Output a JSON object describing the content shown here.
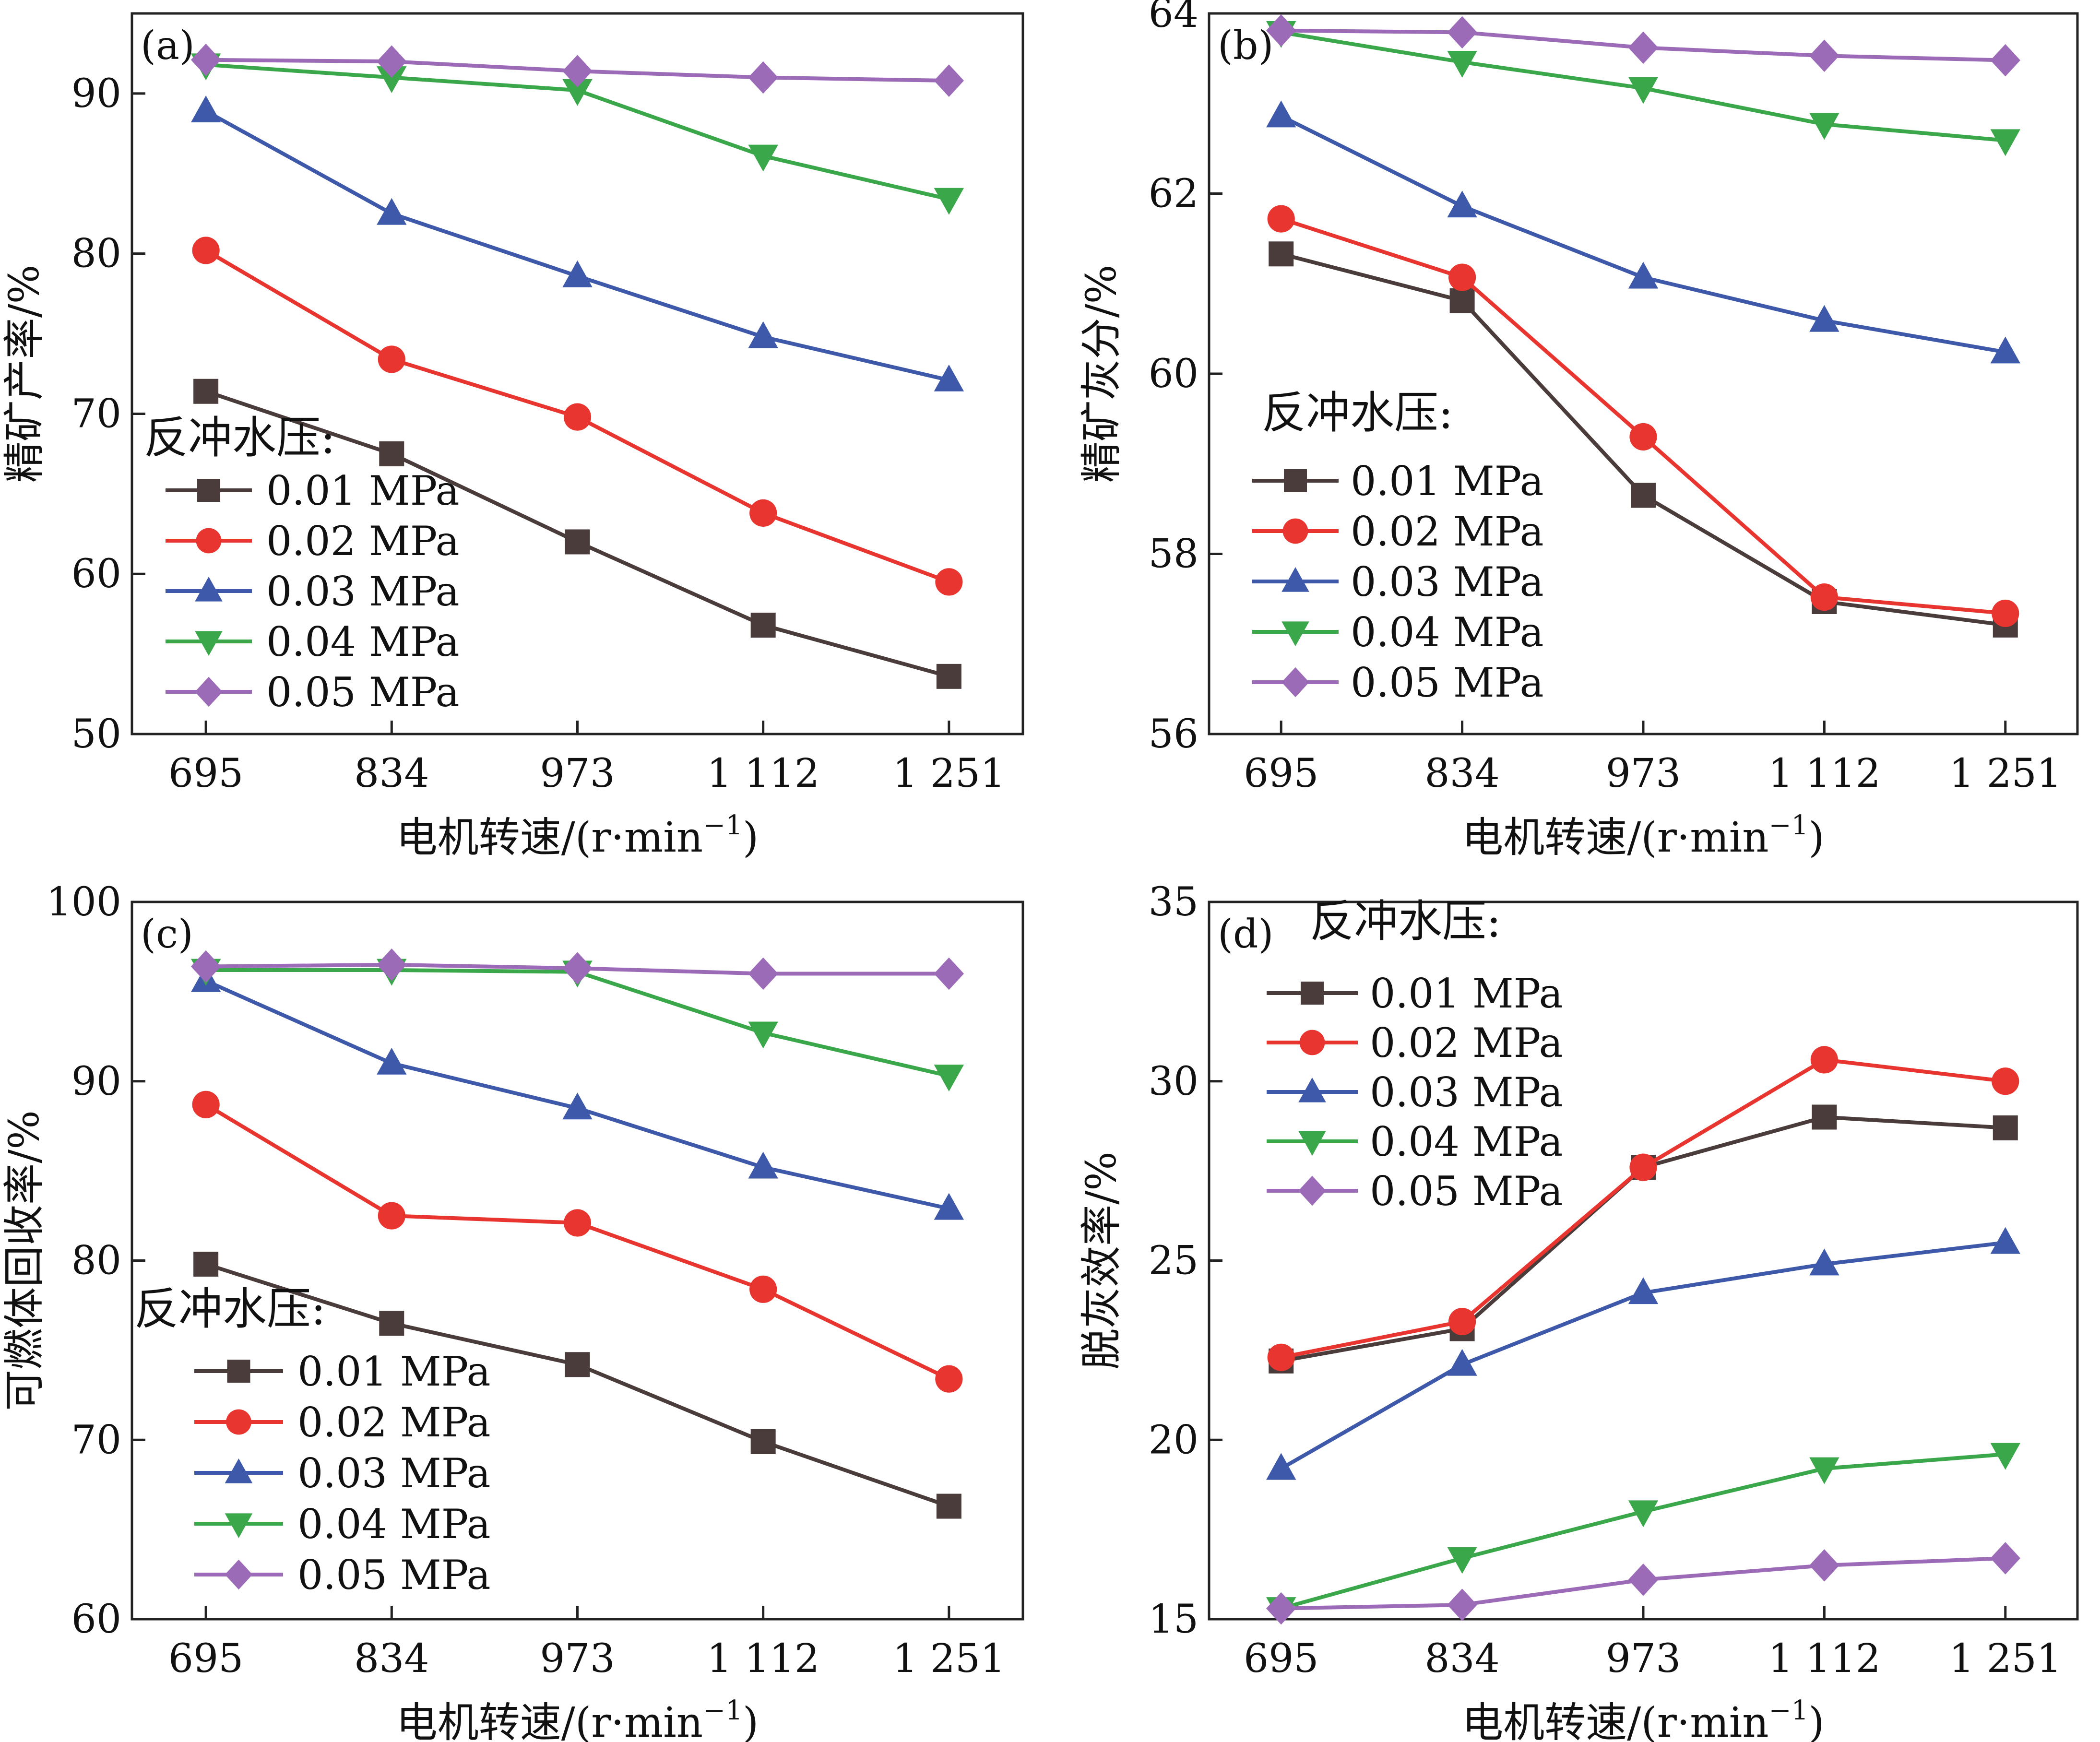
{
  "legend_title": "反冲水压:",
  "colors": {
    "0.01 MPa": "#4a3c3a",
    "0.02 MPa": "#e8352f",
    "0.03 MPa": "#3e59aa",
    "0.04 MPa": "#3aa84a",
    "0.05 MPa": "#9c6bb8"
  },
  "markers": {
    "0.01 MPa": "square",
    "0.02 MPa": "circle",
    "0.03 MPa": "triangle-up",
    "0.04 MPa": "triangle-down",
    "0.05 MPa": "diamond"
  },
  "chart_data": [
    {
      "panel": "(a)",
      "type": "line",
      "xlabel": "电机转速/(r·min",
      "xlabel_sup": "−1",
      "xlabel_close": ")",
      "ylabel": "精矿产率/%",
      "categories": [
        "695",
        "834",
        "973",
        "1 112",
        "1 251"
      ],
      "ylim": [
        50,
        95
      ],
      "yticks": [
        50,
        60,
        70,
        80,
        90
      ],
      "legend_title": "反冲水压:",
      "series": [
        {
          "name": "0.01 MPa",
          "values": [
            71.4,
            67.5,
            62.0,
            56.8,
            53.6
          ]
        },
        {
          "name": "0.02 MPa",
          "values": [
            80.2,
            73.4,
            69.8,
            63.8,
            59.5
          ]
        },
        {
          "name": "0.03 MPa",
          "values": [
            88.9,
            82.5,
            78.6,
            74.8,
            72.1
          ]
        },
        {
          "name": "0.04 MPa",
          "values": [
            91.8,
            91.0,
            90.2,
            86.1,
            83.4
          ]
        },
        {
          "name": "0.05 MPa",
          "values": [
            92.1,
            92.0,
            91.4,
            91.0,
            90.8
          ]
        }
      ]
    },
    {
      "panel": "(b)",
      "type": "line",
      "xlabel": "电机转速/(r·min",
      "xlabel_sup": "−1",
      "xlabel_close": ")",
      "ylabel": "精矿灰分/%",
      "categories": [
        "695",
        "834",
        "973",
        "1 112",
        "1 251"
      ],
      "ylim": [
        56,
        64
      ],
      "yticks": [
        56,
        58,
        60,
        62,
        64
      ],
      "legend_title": "反冲水压:",
      "series": [
        {
          "name": "0.01 MPa",
          "values": [
            61.33,
            60.81,
            58.65,
            57.47,
            57.21
          ]
        },
        {
          "name": "0.02 MPa",
          "values": [
            61.72,
            61.07,
            59.3,
            57.52,
            57.34
          ]
        },
        {
          "name": "0.03 MPa",
          "values": [
            62.86,
            61.86,
            61.07,
            60.59,
            60.24
          ]
        },
        {
          "name": "0.04 MPa",
          "values": [
            63.79,
            63.46,
            63.17,
            62.77,
            62.59
          ]
        },
        {
          "name": "0.05 MPa",
          "values": [
            63.81,
            63.79,
            63.62,
            63.53,
            63.48
          ]
        }
      ]
    },
    {
      "panel": "(c)",
      "type": "line",
      "xlabel": "电机转速/(r·min",
      "xlabel_sup": "−1",
      "xlabel_close": ")",
      "ylabel": "可燃体回收率/%",
      "categories": [
        "695",
        "834",
        "973",
        "1 112",
        "1 251"
      ],
      "ylim": [
        60,
        100
      ],
      "yticks": [
        60,
        70,
        80,
        90,
        100
      ],
      "legend_title": "反冲水压:",
      "series": [
        {
          "name": "0.01 MPa",
          "values": [
            79.8,
            76.5,
            74.2,
            69.9,
            66.3
          ]
        },
        {
          "name": "0.02 MPa",
          "values": [
            88.7,
            82.5,
            82.1,
            78.4,
            73.4
          ]
        },
        {
          "name": "0.03 MPa",
          "values": [
            95.6,
            91.0,
            88.5,
            85.2,
            82.9
          ]
        },
        {
          "name": "0.04 MPa",
          "values": [
            96.2,
            96.2,
            96.1,
            92.7,
            90.3
          ]
        },
        {
          "name": "0.05 MPa",
          "values": [
            96.4,
            96.5,
            96.3,
            96.0,
            96.0
          ]
        }
      ]
    },
    {
      "panel": "(d)",
      "type": "line",
      "xlabel": "电机转速/(r·min",
      "xlabel_sup": "−1",
      "xlabel_close": ")",
      "ylabel": "脱灰效率/%",
      "categories": [
        "695",
        "834",
        "973",
        "1 112",
        "1 251"
      ],
      "ylim": [
        15,
        35
      ],
      "yticks": [
        15,
        20,
        25,
        30,
        35
      ],
      "legend_title": "反冲水压:",
      "series": [
        {
          "name": "0.01 MPa",
          "values": [
            22.2,
            23.1,
            27.6,
            29.0,
            28.7
          ]
        },
        {
          "name": "0.02 MPa",
          "values": [
            22.3,
            23.3,
            27.6,
            30.6,
            30.0
          ]
        },
        {
          "name": "0.03 MPa",
          "values": [
            19.2,
            22.1,
            24.1,
            24.9,
            25.5
          ]
        },
        {
          "name": "0.04 MPa",
          "values": [
            15.3,
            16.7,
            18.0,
            19.2,
            19.6
          ]
        },
        {
          "name": "0.05 MPa",
          "values": [
            15.3,
            15.4,
            16.1,
            16.5,
            16.7
          ]
        }
      ]
    }
  ]
}
